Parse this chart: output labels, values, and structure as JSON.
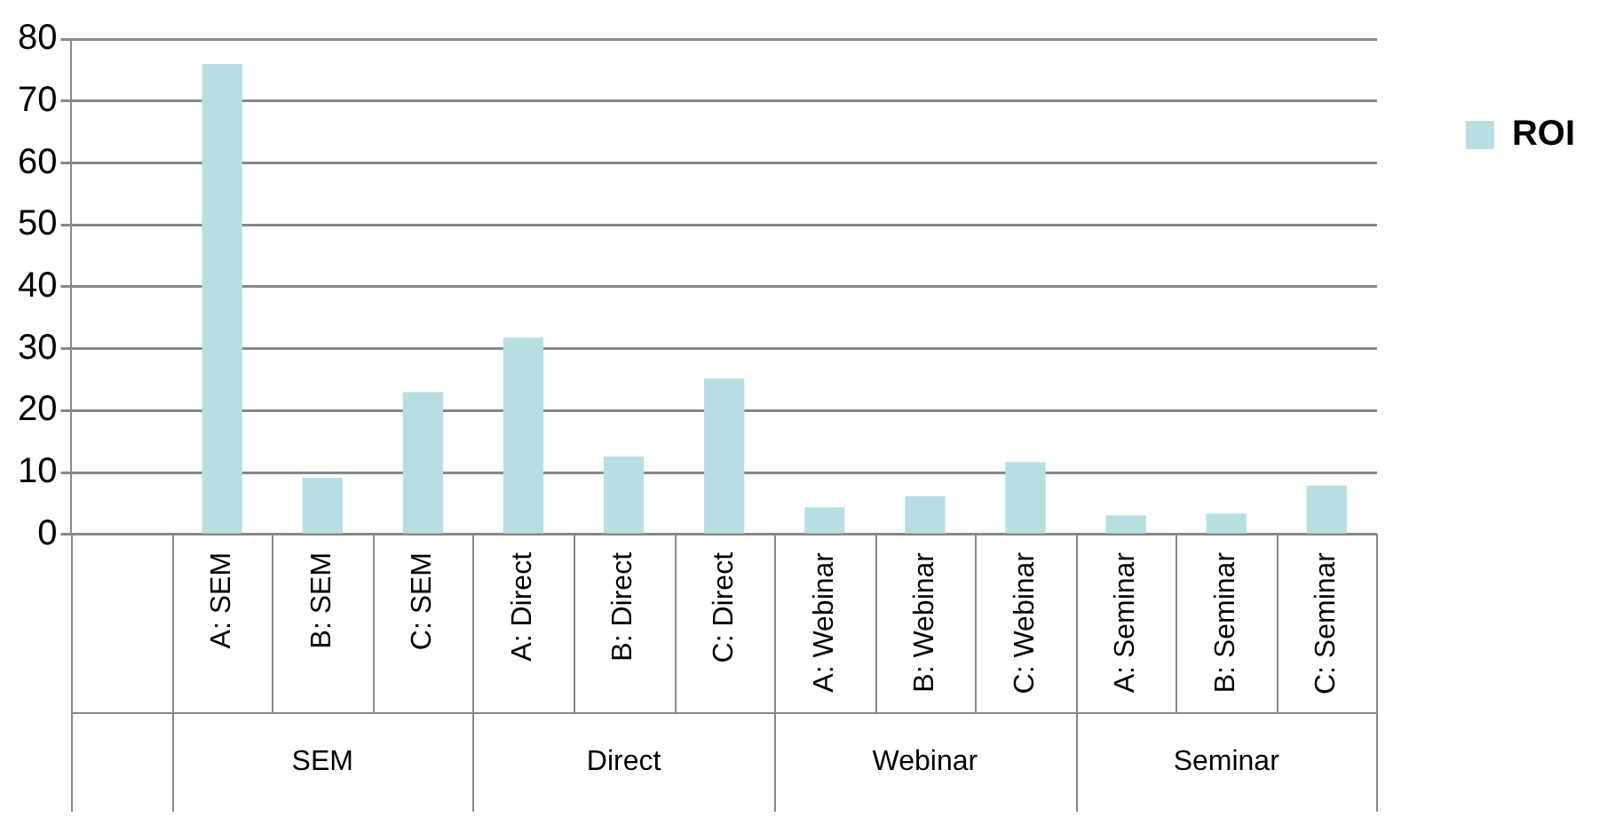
{
  "chart_data": {
    "type": "bar",
    "categories": [
      null,
      "A: SEM",
      "B: SEM",
      "C: SEM",
      "A: Direct",
      "B: Direct",
      "C: Direct",
      "A: Webinar",
      "B: Webinar",
      "C: Webinar",
      "A: Seminar",
      "B: Seminar",
      "C: Seminar"
    ],
    "series": [
      {
        "name": "ROI",
        "color": "#b7dfe2",
        "values": [
          null,
          76,
          9.2,
          23,
          31.8,
          12.6,
          25.2,
          4.4,
          6.2,
          11.7,
          3.1,
          3.4,
          7.9
        ]
      }
    ],
    "ylim": [
      0,
      80
    ],
    "yticks": [
      0,
      10,
      20,
      30,
      40,
      50,
      60,
      70,
      80
    ],
    "grid": "y",
    "legend": "top right",
    "annotations": [
      "SEM",
      "Direct",
      "Webinar",
      "Seminar"
    ]
  }
}
